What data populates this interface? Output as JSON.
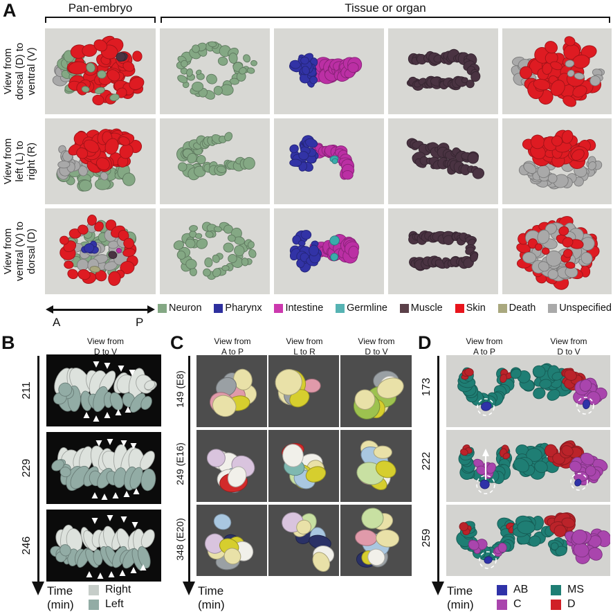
{
  "colors": {
    "neuron": "#84a884",
    "pharynx": "#3233a6",
    "intestine": "#bb2fa4",
    "germline": "#3aabab",
    "muscle": "#4a3342",
    "skin": "#de1b22",
    "death": "#a9a87e",
    "unspecified": "#a9a9a9",
    "right_cells": "#dde2dd",
    "left_cells": "#92aca5",
    "ab": "#2f32a8",
    "ms": "#1f7e74",
    "c_lineage": "#a945ad",
    "d_lineage": "#bb232a",
    "cell_bg": "#d8d8d4",
    "dark_bg": "#4d4d4d",
    "black_bg": "#0b0b0b"
  },
  "c_palette": [
    "#e9e1a8",
    "#9aa0a4",
    "#e09aaa",
    "#d6ce2e",
    "#9dc24f",
    "#f1f0ea",
    "#a9c7e0",
    "#d22a2a",
    "#2a3166",
    "#d9c4de",
    "#c8e0a2",
    "#7fb8b0"
  ],
  "panelA": {
    "label": "A",
    "headers": {
      "pan": "Pan-embryo",
      "tissue": "Tissue or organ"
    },
    "row_labels": [
      "View from\ndorsal (D) to\nventral (V)",
      "View from\nleft (L) to\nright (R)",
      "View from\nventral (V) to\ndorsal (D)"
    ],
    "axis": {
      "anterior": "A",
      "posterior": "P"
    },
    "legend": [
      {
        "label": "Neuron",
        "color": "#84a884"
      },
      {
        "label": "Pharynx",
        "color": "#2d2f9e"
      },
      {
        "label": "Intestine",
        "color": "#cc39ae"
      },
      {
        "label": "Germline",
        "color": "#56b3b3"
      },
      {
        "label": "Muscle",
        "color": "#5b4049"
      },
      {
        "label": "Skin",
        "color": "#e8141c"
      },
      {
        "label": "Death",
        "color": "#a9a87e"
      },
      {
        "label": "Unspecified",
        "color": "#a9a9a9"
      }
    ]
  },
  "panelB": {
    "label": "B",
    "view_header": "View from\nD to V",
    "time_points": [
      "211",
      "229",
      "246"
    ],
    "time_axis": "Time\n(min)",
    "legend": [
      {
        "label": "Right",
        "color": "#c6cdc9"
      },
      {
        "label": "Left",
        "color": "#92aca5"
      }
    ]
  },
  "panelC": {
    "label": "C",
    "col_headers": [
      "View from\nA to P",
      "View from\nL to R",
      "View from\nD to V"
    ],
    "row_labels": [
      "149 (E8)",
      "249 (E16)",
      "348 (E20)"
    ],
    "time_axis": "Time\n(min)"
  },
  "panelD": {
    "label": "D",
    "col_headers": [
      "View from\nA to P",
      "View from\nD to V"
    ],
    "row_labels": [
      "173",
      "222",
      "259"
    ],
    "time_axis": "Time\n(min)",
    "legend": [
      {
        "label": "AB",
        "color": "#2f32a8"
      },
      {
        "label": "C",
        "color": "#a945ad"
      },
      {
        "label": "MS",
        "color": "#1f7e74"
      },
      {
        "label": "D",
        "color": "#d01f26"
      }
    ]
  }
}
